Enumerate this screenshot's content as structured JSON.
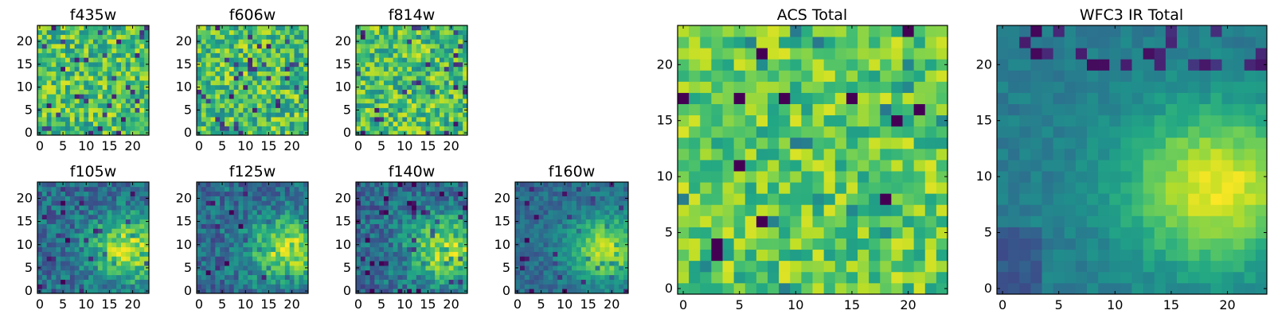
{
  "figure": {
    "colormap": "viridis"
  },
  "chart_data": [
    {
      "type": "heatmap",
      "title": "f435w",
      "grid_size": 24,
      "xticks": [
        0,
        5,
        10,
        15,
        20
      ],
      "yticks": [
        0,
        5,
        10,
        15,
        20
      ],
      "xlim": [
        0,
        24
      ],
      "ylim": [
        0,
        24
      ],
      "pattern": "noise",
      "seed": 11
    },
    {
      "type": "heatmap",
      "title": "f606w",
      "grid_size": 24,
      "xticks": [
        0,
        5,
        10,
        15,
        20
      ],
      "yticks": [
        0,
        5,
        10,
        15,
        20
      ],
      "xlim": [
        0,
        24
      ],
      "ylim": [
        0,
        24
      ],
      "pattern": "noise",
      "seed": 23
    },
    {
      "type": "heatmap",
      "title": "f814w",
      "grid_size": 24,
      "xticks": [
        0,
        5,
        10,
        15,
        20
      ],
      "yticks": [
        0,
        5,
        10,
        15,
        20
      ],
      "xlim": [
        0,
        24
      ],
      "ylim": [
        0,
        24
      ],
      "pattern": "noise",
      "seed": 37
    },
    {
      "type": "heatmap",
      "title": "f105w",
      "grid_size": 24,
      "xticks": [
        0,
        5,
        10,
        15,
        20
      ],
      "yticks": [
        0,
        5,
        10,
        15,
        20
      ],
      "xlim": [
        0,
        24
      ],
      "ylim": [
        0,
        24
      ],
      "pattern": "blob",
      "seed": 41
    },
    {
      "type": "heatmap",
      "title": "f125w",
      "grid_size": 24,
      "xticks": [
        0,
        5,
        10,
        15,
        20
      ],
      "yticks": [
        0,
        5,
        10,
        15,
        20
      ],
      "xlim": [
        0,
        24
      ],
      "ylim": [
        0,
        24
      ],
      "pattern": "blob",
      "seed": 53
    },
    {
      "type": "heatmap",
      "title": "f140w",
      "grid_size": 24,
      "xticks": [
        0,
        5,
        10,
        15,
        20
      ],
      "yticks": [
        0,
        5,
        10,
        15,
        20
      ],
      "xlim": [
        0,
        24
      ],
      "ylim": [
        0,
        24
      ],
      "pattern": "blob",
      "seed": 67
    },
    {
      "type": "heatmap",
      "title": "f160w",
      "grid_size": 24,
      "xticks": [
        0,
        5,
        10,
        15,
        20
      ],
      "yticks": [
        0,
        5,
        10,
        15,
        20
      ],
      "xlim": [
        0,
        24
      ],
      "ylim": [
        0,
        24
      ],
      "pattern": "blob_smooth",
      "seed": 79
    },
    {
      "type": "heatmap",
      "title": "ACS Total",
      "grid_size": 24,
      "xticks": [
        0,
        5,
        10,
        15,
        20
      ],
      "yticks": [
        0,
        5,
        10,
        15,
        20
      ],
      "xlim": [
        0,
        24
      ],
      "ylim": [
        0,
        24
      ],
      "pattern": "noise_mild",
      "seed": 97
    },
    {
      "type": "heatmap",
      "title": "WFC3 IR Total",
      "grid_size": 24,
      "xticks": [
        0,
        5,
        10,
        15,
        20
      ],
      "yticks": [
        0,
        5,
        10,
        15,
        20
      ],
      "xlim": [
        0,
        24
      ],
      "ylim": [
        0,
        24
      ],
      "pattern": "blob_total",
      "seed": 113
    }
  ]
}
